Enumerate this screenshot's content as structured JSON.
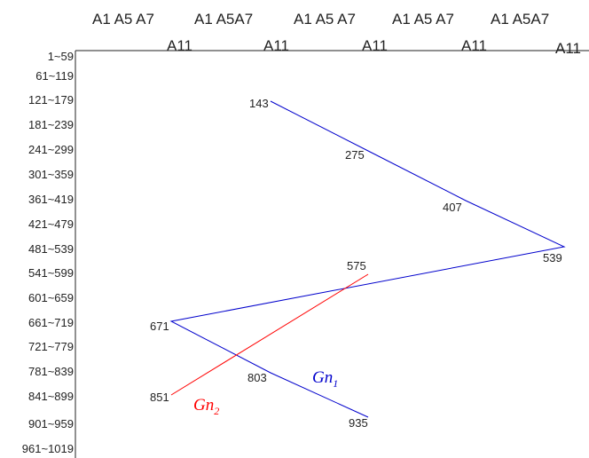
{
  "header": {
    "top": [
      "A1 A5 A7",
      "A1 A5A7",
      "A1 A5 A7",
      "A1 A5 A7",
      "A1 A5A7"
    ],
    "bottom": [
      "A11",
      "A11",
      "A11",
      "A11",
      "A11"
    ]
  },
  "rows": [
    "1~59",
    "61~119",
    "121~179",
    "181~239",
    "241~299",
    "301~359",
    "361~419",
    "421~479",
    "481~539",
    "541~599",
    "601~659",
    "661~719",
    "721~779",
    "781~839",
    "841~899",
    "901~959",
    "961~1019"
  ],
  "colors": {
    "gn1": "#0000cc",
    "gn2": "#ff0000",
    "axis": "#222222"
  },
  "series": [
    {
      "name": "Gn",
      "subscript": "1",
      "color": "#0000cc",
      "points": [
        {
          "label": "143",
          "col": 2,
          "row": 2
        },
        {
          "label": "275",
          "col": 3,
          "row": 4
        },
        {
          "label": "407",
          "col": 4,
          "row": 6
        },
        {
          "label": "539",
          "col": 5,
          "row": 8
        },
        {
          "label": "671",
          "col": 1,
          "row": 11
        },
        {
          "label": "803",
          "col": 2,
          "row": 13
        },
        {
          "label": "935",
          "col": 3,
          "row": 15
        }
      ]
    },
    {
      "name": "Gn",
      "subscript": "2",
      "color": "#ff0000",
      "points": [
        {
          "label": "575",
          "col": 3,
          "row": 9
        },
        {
          "label": "851",
          "col": 1,
          "row": 14
        }
      ]
    }
  ]
}
